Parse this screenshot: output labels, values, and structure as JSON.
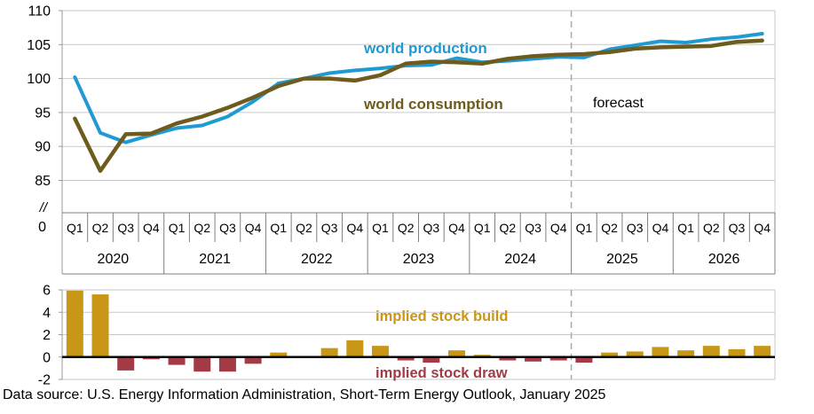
{
  "footer": "Data source: U.S. Energy Information Administration, Short-Term Energy Outlook, January 2025",
  "colors": {
    "production": "#1f9ad3",
    "consumption": "#6d5c1e",
    "build": "#c99718",
    "draw": "#a23b45",
    "grid": "#c9c9c9",
    "axis": "#9a9a9a",
    "table_line": "#7f7f7f",
    "zero_line": "#000000",
    "forecast_line": "#a9a9a9",
    "text": "#000000"
  },
  "annotations": {
    "production_label": "world production",
    "consumption_label": "world consumption",
    "forecast_label": "forecast",
    "build_label": "implied stock  build",
    "draw_label": "implied stock draw"
  },
  "chart_data": [
    {
      "type": "line",
      "title": "",
      "years": [
        "2020",
        "2021",
        "2022",
        "2023",
        "2024",
        "2025",
        "2026"
      ],
      "quarter_labels": [
        "Q1",
        "Q2",
        "Q3",
        "Q4"
      ],
      "y_ticks": [
        110,
        105,
        100,
        95,
        90,
        85
      ],
      "axis_break_labels": [
        "//",
        "0"
      ],
      "ylim_shown": [
        85,
        110
      ],
      "grid": true,
      "forecast_start_index": 20,
      "series": [
        {
          "name": "world production",
          "values": [
            100.2,
            92.0,
            90.6,
            91.7,
            92.7,
            93.1,
            94.4,
            96.6,
            99.3,
            100.0,
            100.8,
            101.2,
            101.5,
            101.9,
            102.0,
            103.0,
            102.4,
            102.6,
            102.9,
            103.2,
            103.1,
            104.3,
            104.9,
            105.5,
            105.3,
            105.8,
            106.1,
            106.6
          ]
        },
        {
          "name": "world consumption",
          "values": [
            94.1,
            86.4,
            91.8,
            91.9,
            93.4,
            94.4,
            95.7,
            97.2,
            98.9,
            100.0,
            100.0,
            99.7,
            100.5,
            102.2,
            102.5,
            102.4,
            102.2,
            102.9,
            103.3,
            103.5,
            103.6,
            103.9,
            104.4,
            104.6,
            104.7,
            104.8,
            105.4,
            105.6
          ]
        }
      ]
    },
    {
      "type": "bar",
      "title": "implied stock build / draw",
      "years": [
        "2020",
        "2021",
        "2022",
        "2023",
        "2024",
        "2025",
        "2026"
      ],
      "y_ticks": [
        6,
        4,
        2,
        0,
        -2
      ],
      "ylim": [
        -2,
        6
      ],
      "grid": true,
      "forecast_start_index": 20,
      "values": [
        6.1,
        5.6,
        -1.2,
        -0.2,
        -0.7,
        -1.3,
        -1.3,
        -0.6,
        0.4,
        0.0,
        0.8,
        1.5,
        1.0,
        -0.3,
        -0.5,
        0.6,
        0.2,
        -0.3,
        -0.4,
        -0.3,
        -0.5,
        0.4,
        0.5,
        0.9,
        0.6,
        1.0,
        0.7,
        1.0
      ]
    }
  ]
}
